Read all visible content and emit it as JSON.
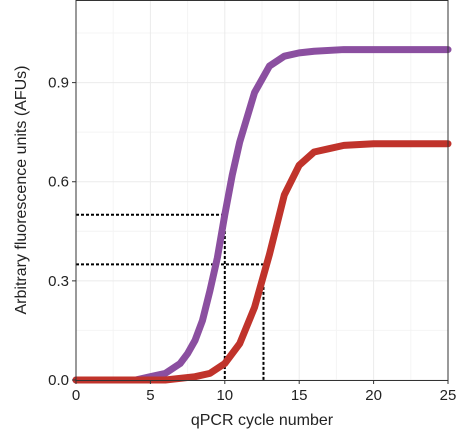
{
  "chart_data": {
    "type": "line",
    "title": "",
    "xlabel": "qPCR cycle number",
    "ylabel": "Arbitrary fluorescence units (AFUs)",
    "xlim": [
      0,
      25
    ],
    "ylim": [
      0,
      1.15
    ],
    "x_ticks": [
      0,
      5,
      10,
      15,
      20,
      25
    ],
    "y_ticks": [
      0.0,
      0.3,
      0.6,
      0.9
    ],
    "x_tick_labels": [
      "0",
      "5",
      "10",
      "15",
      "20",
      "25"
    ],
    "y_tick_labels": [
      "0.0",
      "0.3",
      "0.6",
      "0.9"
    ],
    "grid": true,
    "legend": "none",
    "series": [
      {
        "color": "#8b4fa0",
        "x": [
          0,
          2,
          4,
          5,
          6,
          7,
          7.5,
          8,
          8.5,
          9,
          9.5,
          10,
          10.5,
          11,
          12,
          13,
          14,
          15,
          16,
          18,
          20,
          22,
          25
        ],
        "y": [
          0.0,
          0.0,
          0.0,
          0.01,
          0.02,
          0.05,
          0.08,
          0.12,
          0.18,
          0.27,
          0.37,
          0.5,
          0.62,
          0.72,
          0.87,
          0.95,
          0.98,
          0.99,
          0.995,
          1.0,
          1.0,
          1.0,
          1.0
        ]
      },
      {
        "color": "#c0332b",
        "x": [
          0,
          2,
          4,
          6,
          8,
          9,
          10,
          11,
          12,
          12.5,
          13,
          14,
          15,
          16,
          17,
          18,
          20,
          22,
          25
        ],
        "y": [
          0.0,
          0.0,
          0.0,
          0.0,
          0.01,
          0.02,
          0.05,
          0.11,
          0.22,
          0.3,
          0.38,
          0.56,
          0.65,
          0.69,
          0.7,
          0.71,
          0.715,
          0.715,
          0.715
        ]
      }
    ],
    "reference_lines": [
      {
        "color": "#000000",
        "dash": "dotted",
        "points": [
          [
            0,
            0.5
          ],
          [
            10,
            0.5
          ],
          [
            10,
            0
          ]
        ]
      },
      {
        "color": "#000000",
        "dash": "dotted",
        "points": [
          [
            0,
            0.35
          ],
          [
            12.6,
            0.35
          ],
          [
            12.6,
            0
          ]
        ]
      }
    ]
  }
}
